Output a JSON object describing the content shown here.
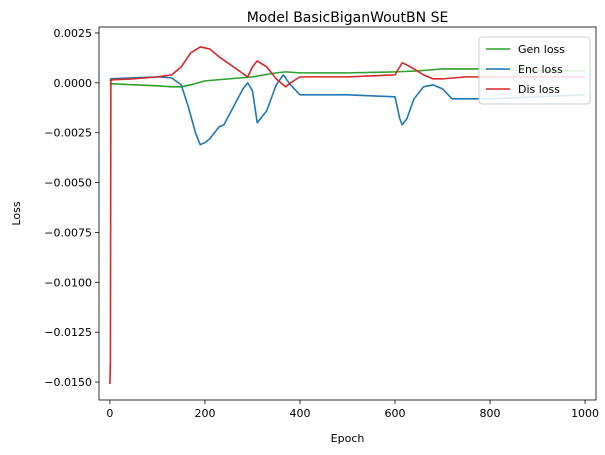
{
  "chart_data": {
    "type": "line",
    "title": "Model BasicBiganWoutBN SE",
    "xlabel": "Epoch",
    "ylabel": "Loss",
    "xlim": [
      -23,
      1023
    ],
    "ylim": [
      -0.0159,
      0.0028
    ],
    "xticks": [
      0,
      200,
      400,
      600,
      800,
      1000
    ],
    "xtick_labels": [
      "0",
      "200",
      "400",
      "600",
      "800",
      "1000"
    ],
    "yticks": [
      0.0025,
      0.0,
      -0.0025,
      -0.005,
      -0.0075,
      -0.01,
      -0.0125,
      -0.015
    ],
    "ytick_labels": [
      "0.0025",
      "0.0000",
      "−0.0025",
      "−0.0050",
      "−0.0075",
      "−0.0100",
      "−0.0125",
      "−0.0150"
    ],
    "grid": false,
    "legend_position": "top-right",
    "series": [
      {
        "name": "Gen loss",
        "color": "#2ca02c",
        "x": [
          0,
          2,
          10,
          50,
          100,
          130,
          150,
          170,
          200,
          250,
          300,
          350,
          370,
          400,
          500,
          600,
          650,
          700,
          800,
          900,
          1000
        ],
        "y": [
          -0.0001,
          -5e-05,
          -5e-05,
          -0.0001,
          -0.00015,
          -0.0002,
          -0.0002,
          -0.0001,
          0.0001,
          0.0002,
          0.0003,
          0.0005,
          0.00055,
          0.0005,
          0.0005,
          0.00055,
          0.0006,
          0.0007,
          0.0007,
          0.0006,
          0.0006
        ]
      },
      {
        "name": "Enc loss",
        "color": "#1f77b4",
        "x": [
          0,
          2,
          50,
          100,
          130,
          150,
          165,
          180,
          190,
          200,
          210,
          230,
          240,
          260,
          280,
          290,
          300,
          310,
          330,
          350,
          365,
          380,
          400,
          500,
          600,
          610,
          615,
          625,
          640,
          660,
          680,
          700,
          720,
          800,
          900,
          1000
        ],
        "y": [
          0.0001,
          0.0002,
          0.00025,
          0.0003,
          0.00025,
          -0.0001,
          -0.0012,
          -0.0025,
          -0.0031,
          -0.003,
          -0.0028,
          -0.0022,
          -0.0021,
          -0.0012,
          -0.0003,
          0.0,
          -0.0004,
          -0.002,
          -0.0014,
          -0.0001,
          0.0004,
          -0.0001,
          -0.0006,
          -0.0006,
          -0.0007,
          -0.0018,
          -0.0021,
          -0.0018,
          -0.0008,
          -0.0002,
          -0.0001,
          -0.0003,
          -0.0008,
          -0.0008,
          -0.0007,
          -0.0006
        ]
      },
      {
        "name": "Dis loss",
        "color": "#d62728",
        "x": [
          0,
          1,
          2,
          5,
          50,
          100,
          130,
          150,
          170,
          190,
          210,
          230,
          260,
          290,
          300,
          310,
          330,
          350,
          370,
          380,
          400,
          500,
          600,
          610,
          615,
          625,
          640,
          660,
          680,
          700,
          750,
          800,
          900,
          1000
        ],
        "y": [
          -0.0151,
          -0.014,
          0.0001,
          0.00015,
          0.0002,
          0.0003,
          0.0004,
          0.0008,
          0.0015,
          0.0018,
          0.0017,
          0.0013,
          0.0008,
          0.0003,
          0.0008,
          0.0011,
          0.0008,
          0.0002,
          -0.0002,
          0.0,
          0.0003,
          0.0003,
          0.0004,
          0.0008,
          0.001,
          0.0009,
          0.0007,
          0.0004,
          0.0002,
          0.0002,
          0.0003,
          0.0003,
          0.0003,
          0.0003
        ]
      }
    ]
  }
}
